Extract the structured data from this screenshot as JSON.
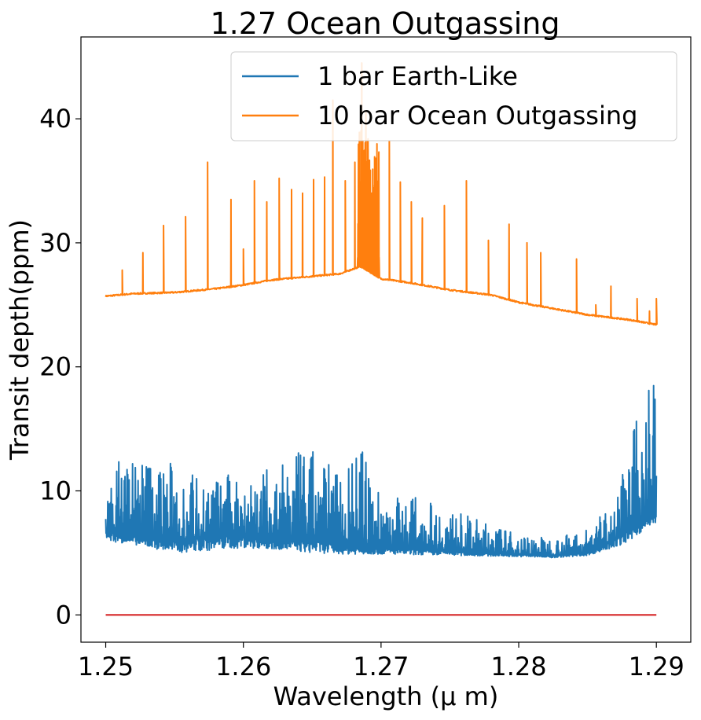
{
  "chart_data": {
    "type": "line",
    "title": "1.27 Ocean Outgassing",
    "xlabel": "Wavelength (μ m)",
    "ylabel": "Transit depth(ppm)",
    "xlim": [
      1.2482,
      1.2925
    ],
    "ylim": [
      -2.2,
      46.6
    ],
    "xticks": [
      1.25,
      1.26,
      1.27,
      1.28,
      1.29
    ],
    "xtick_labels": [
      "1.25",
      "1.26",
      "1.27",
      "1.28",
      "1.29"
    ],
    "yticks": [
      0,
      10,
      20,
      30,
      40
    ],
    "ytick_labels": [
      "0",
      "10",
      "20",
      "30",
      "40"
    ],
    "grid": false,
    "legend_position": "top-right",
    "series": [
      {
        "name": "1 bar Earth-Like",
        "color": "#1f77b4",
        "baseline": [
          [
            1.25,
            6.8
          ],
          [
            1.2525,
            6.2
          ],
          [
            1.255,
            6.0
          ],
          [
            1.2575,
            6.3
          ],
          [
            1.26,
            6.5
          ],
          [
            1.2625,
            6.0
          ],
          [
            1.265,
            6.1
          ],
          [
            1.2675,
            5.5
          ],
          [
            1.27,
            5.4
          ],
          [
            1.2725,
            5.3
          ],
          [
            1.275,
            5.2
          ],
          [
            1.2775,
            5.0
          ],
          [
            1.28,
            4.9
          ],
          [
            1.2825,
            4.8
          ],
          [
            1.285,
            5.0
          ],
          [
            1.2875,
            6.5
          ],
          [
            1.289,
            7.5
          ],
          [
            1.29,
            8.0
          ]
        ],
        "envelope_top": [
          [
            1.25,
            9.0
          ],
          [
            1.2512,
            13.8
          ],
          [
            1.2525,
            13.0
          ],
          [
            1.255,
            12.4
          ],
          [
            1.2575,
            11.0
          ],
          [
            1.26,
            11.6
          ],
          [
            1.2625,
            11.8
          ],
          [
            1.2645,
            13.6
          ],
          [
            1.2665,
            12.4
          ],
          [
            1.2685,
            13.6
          ],
          [
            1.27,
            10.0
          ],
          [
            1.2725,
            9.6
          ],
          [
            1.275,
            8.5
          ],
          [
            1.2775,
            7.5
          ],
          [
            1.28,
            6.5
          ],
          [
            1.2825,
            6.2
          ],
          [
            1.285,
            7.0
          ],
          [
            1.2868,
            9.0
          ],
          [
            1.288,
            13.0
          ],
          [
            1.2893,
            19.8
          ],
          [
            1.29,
            20.0
          ]
        ],
        "envelope_bottom": [
          [
            1.25,
            6.0
          ],
          [
            1.2525,
            5.6
          ],
          [
            1.255,
            5.0
          ],
          [
            1.2575,
            5.2
          ],
          [
            1.26,
            5.4
          ],
          [
            1.2625,
            5.3
          ],
          [
            1.265,
            5.0
          ],
          [
            1.2675,
            4.9
          ],
          [
            1.27,
            4.9
          ],
          [
            1.275,
            4.8
          ],
          [
            1.28,
            4.7
          ],
          [
            1.2825,
            4.6
          ],
          [
            1.285,
            4.8
          ],
          [
            1.2875,
            5.6
          ],
          [
            1.29,
            7.5
          ]
        ]
      },
      {
        "name": "10 bar Ocean Outgassing",
        "color": "#ff7f0e",
        "continuum": [
          [
            1.25,
            25.7
          ],
          [
            1.252,
            25.9
          ],
          [
            1.255,
            26.0
          ],
          [
            1.258,
            26.3
          ],
          [
            1.26,
            26.6
          ],
          [
            1.262,
            27.0
          ],
          [
            1.265,
            27.3
          ],
          [
            1.267,
            27.5
          ],
          [
            1.2685,
            28.1
          ],
          [
            1.27,
            27.1
          ],
          [
            1.272,
            26.8
          ],
          [
            1.275,
            26.2
          ],
          [
            1.278,
            25.8
          ],
          [
            1.28,
            25.2
          ],
          [
            1.282,
            24.8
          ],
          [
            1.285,
            24.2
          ],
          [
            1.288,
            23.8
          ],
          [
            1.29,
            23.4
          ]
        ],
        "peaks": [
          [
            1.2512,
            27.8
          ],
          [
            1.2527,
            29.2
          ],
          [
            1.2542,
            31.4
          ],
          [
            1.2558,
            32.1
          ],
          [
            1.2574,
            36.5
          ],
          [
            1.2591,
            33.5
          ],
          [
            1.26,
            29.5
          ],
          [
            1.2608,
            35.0
          ],
          [
            1.2617,
            33.3
          ],
          [
            1.2626,
            35.2
          ],
          [
            1.2635,
            34.3
          ],
          [
            1.2643,
            34.0
          ],
          [
            1.2651,
            35.1
          ],
          [
            1.2659,
            35.3
          ],
          [
            1.2665,
            41.5
          ],
          [
            1.2674,
            35.0
          ],
          [
            1.2681,
            36.5
          ],
          [
            1.2686,
            44.5
          ],
          [
            1.2689,
            40.5
          ],
          [
            1.2693,
            34.0
          ],
          [
            1.2698,
            33.0
          ],
          [
            1.2706,
            38.2
          ],
          [
            1.2714,
            34.9
          ],
          [
            1.2722,
            33.3
          ],
          [
            1.273,
            32.0
          ],
          [
            1.2746,
            33.0
          ],
          [
            1.2762,
            35.0
          ],
          [
            1.2778,
            30.2
          ],
          [
            1.2793,
            31.5
          ],
          [
            1.2806,
            30.0
          ],
          [
            1.2816,
            29.2
          ],
          [
            1.2842,
            28.7
          ],
          [
            1.2856,
            25.0
          ],
          [
            1.2867,
            26.5
          ],
          [
            1.2886,
            25.5
          ],
          [
            1.2895,
            24.5
          ],
          [
            1.29,
            25.5
          ]
        ]
      },
      {
        "name": "",
        "color": "#d62728",
        "points": [
          [
            1.25,
            0
          ],
          [
            1.29,
            0
          ]
        ]
      }
    ]
  }
}
